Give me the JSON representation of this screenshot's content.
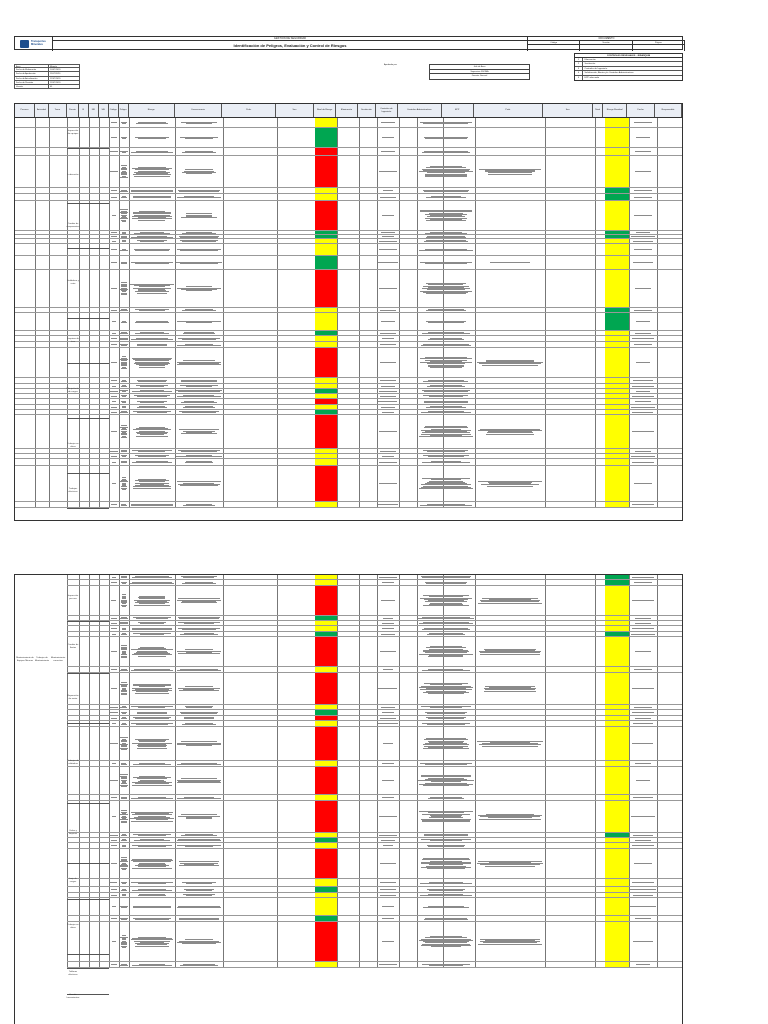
{
  "header": {
    "org_line": "GESTION DE SEGURIDAD",
    "title": "Identificación de Peligros, Evaluación y Control de Riesgos",
    "logo_text": "Transportes Minerales",
    "right_top": "DOCUMENTO",
    "right_cells": [
      "Código",
      "Versión",
      "Página"
    ]
  },
  "info": [
    {
      "k": "Área",
      "v": "Minería"
    },
    {
      "k": "Fecha de Elaboración",
      "v": "10/07/2020"
    },
    {
      "k": "Fecha de Aprobación",
      "v": "11/07/2020"
    },
    {
      "k": "Fecha de Actualización",
      "v": "12/07/2020"
    },
    {
      "k": "Fecha de Revisión",
      "v": "13/07/2020"
    },
    {
      "k": "Versión",
      "v": "01"
    }
  ],
  "approvals": {
    "label": "Aprobado por:",
    "rows": [
      "Jefe de Área",
      "Supervisor SSOMA",
      "Gerente General"
    ]
  },
  "legend": {
    "title": "CONTROLES RESIDUALES - JERARQUÍA",
    "items": [
      {
        "n": "1",
        "t": "Eliminación"
      },
      {
        "n": "2",
        "t": "Sustitución"
      },
      {
        "n": "3",
        "t": "Controles de Ingeniería"
      },
      {
        "n": "4",
        "t": "Señalización, Alertas y/o Controles Administrativos"
      },
      {
        "n": "5",
        "t": "EPP adecuado"
      }
    ]
  },
  "table": {
    "headers": [
      "Proceso",
      "Actividad",
      "Tarea",
      "Puesto",
      "R",
      "NR",
      "S/E",
      "Código",
      "Peligro",
      "Riesgo",
      "Consecuencia",
      "Prob.",
      "Sev.",
      "Nivel de Riesgo",
      "Eliminación",
      "Sustitución",
      "Controles de Ingeniería",
      "Controles Administrativos",
      "EPP",
      "Prob.",
      "Sev.",
      "Nivel",
      "Riesgo Residual",
      "Fecha",
      "Responsable"
    ],
    "block2_process": "Mantenimiento de Equipos Mineros",
    "block2_activity": "Trabajos de Mantenimiento",
    "block2_task": "Mantenimiento correctivo",
    "group_labels": [
      "Inspección de equipos",
      "Lubricación",
      "Cambio de componentes",
      "Soldadura y corte",
      "Limpieza de área",
      "Manipulación de cargas",
      "Trabajos en altura",
      "Trabajos eléctricos"
    ],
    "block2_groups": [
      "Inspección pre-uso",
      "Cambio de llantas",
      "Reparación de motor",
      "Trabajos de soldadura",
      "Orden y limpieza",
      "Izaje de cargas",
      "Trabajos en altura",
      "Tableros eléctricos",
      "Uso de herramientas"
    ]
  }
}
